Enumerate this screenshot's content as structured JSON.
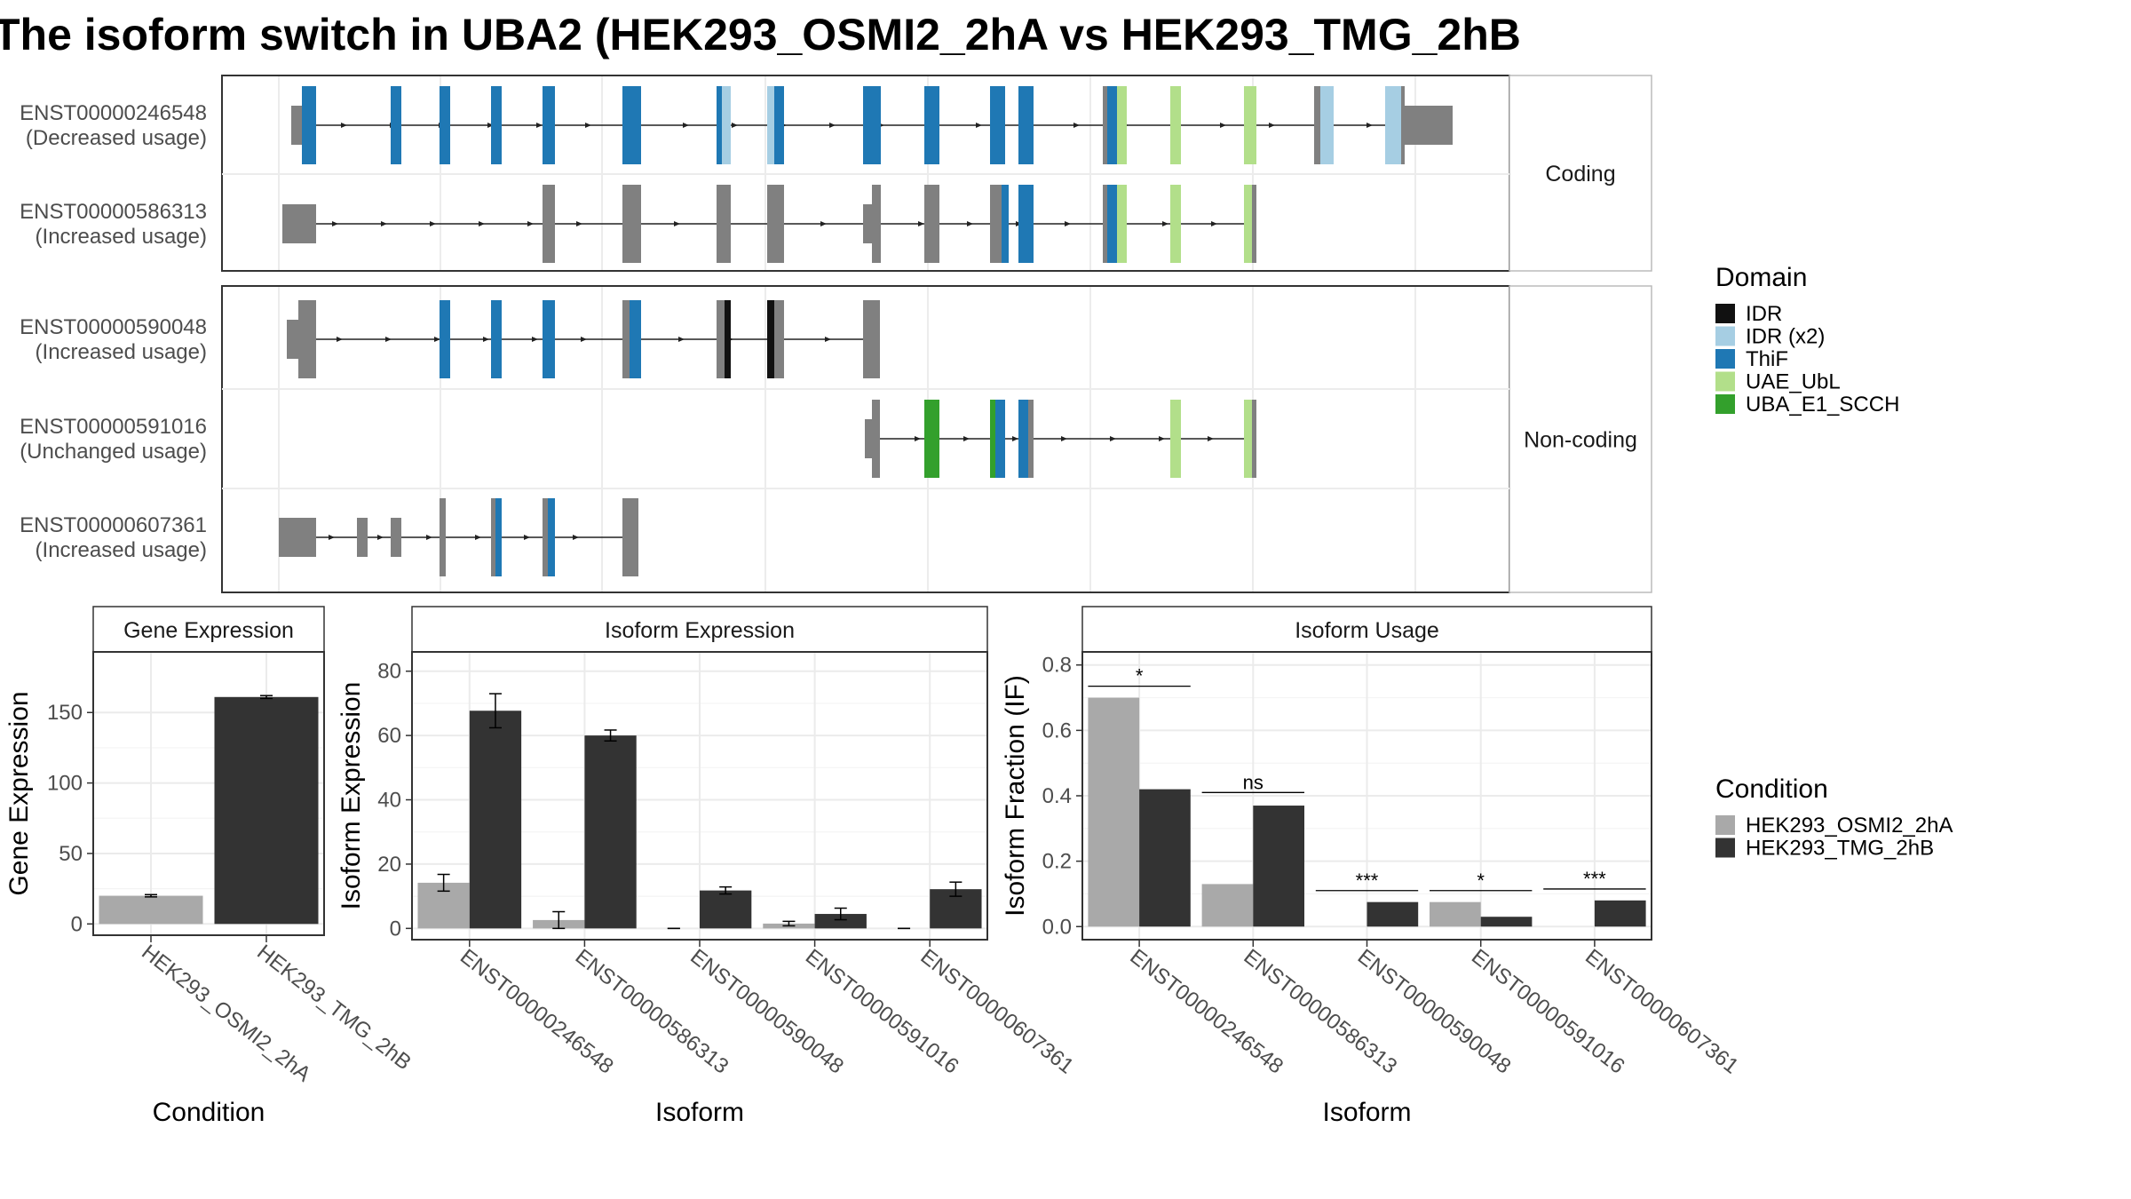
{
  "title": "The isoform switch in UBA2 (HEK293_OSMI2_2hA vs HEK293_TMG_2hB",
  "colors": {
    "IDR": "#111111",
    "IDR (x2)": "#a6cee3",
    "ThiF": "#1f78b4",
    "UAE_UbL": "#b2df8a",
    "UBA_E1_SCCH": "#33a02c",
    "exon": "#808080",
    "cond_a": "#a9a9a9",
    "cond_b": "#333333"
  },
  "structure": {
    "facets": [
      "Coding",
      "Non-coding"
    ],
    "transcripts": [
      {
        "id": "ENST00000246548",
        "usage": "(Decreased usage)",
        "facet": "Coding"
      },
      {
        "id": "ENST00000586313",
        "usage": "(Increased usage)",
        "facet": "Coding"
      },
      {
        "id": "ENST00000590048",
        "usage": "(Increased usage)",
        "facet": "Non-coding"
      },
      {
        "id": "ENST00000591016",
        "usage": "(Unchanged usage)",
        "facet": "Non-coding"
      },
      {
        "id": "ENST00000607361",
        "usage": "(Increased usage)",
        "facet": "Non-coding"
      }
    ]
  },
  "legend_domain": {
    "title": "Domain",
    "items": [
      "IDR",
      "IDR (x2)",
      "ThiF",
      "UAE_UbL",
      "UBA_E1_SCCH"
    ]
  },
  "legend_condition": {
    "title": "Condition",
    "items": [
      "HEK293_OSMI2_2hA",
      "HEK293_TMG_2hB"
    ]
  },
  "chart_data": [
    {
      "type": "bar",
      "panel": "Gene Expression",
      "categories": [
        "HEK293_OSMI2_2hA",
        "HEK293_TMG_2hB"
      ],
      "values": [
        20,
        161
      ],
      "errors": [
        0.8,
        1
      ],
      "xlabel": "Condition",
      "ylabel": "Gene Expression",
      "ylim": [
        -8,
        193
      ],
      "yticks": [
        0,
        50,
        100,
        150
      ],
      "grid": true
    },
    {
      "type": "bar",
      "panel": "Isoform Expression",
      "categories": [
        "ENST00000246548",
        "ENST00000586313",
        "ENST00000590048",
        "ENST00000591016",
        "ENST00000607361"
      ],
      "series": [
        {
          "name": "HEK293_OSMI2_2hA",
          "values": [
            14.2,
            2.6,
            0,
            1.5,
            0
          ],
          "errors": [
            2.6,
            2.6,
            0,
            0.7,
            0
          ]
        },
        {
          "name": "HEK293_TMG_2hB",
          "values": [
            67.7,
            60,
            11.8,
            4.5,
            12.2
          ],
          "errors": [
            5.3,
            1.7,
            1.1,
            1.8,
            2.2
          ]
        }
      ],
      "xlabel": "Isoform",
      "ylabel": "Isoform Expression",
      "ylim": [
        -3.5,
        86
      ],
      "yticks": [
        0,
        20,
        40,
        60,
        80
      ],
      "grid": true
    },
    {
      "type": "bar",
      "panel": "Isoform Usage",
      "categories": [
        "ENST00000246548",
        "ENST00000586313",
        "ENST00000590048",
        "ENST00000591016",
        "ENST00000607361"
      ],
      "series": [
        {
          "name": "HEK293_OSMI2_2hA",
          "values": [
            0.7,
            0.13,
            0,
            0.075,
            0
          ]
        },
        {
          "name": "HEK293_TMG_2hB",
          "values": [
            0.42,
            0.37,
            0.075,
            0.03,
            0.08
          ]
        }
      ],
      "significance": [
        {
          "label": "*",
          "y": 0.735
        },
        {
          "label": "ns",
          "y": 0.41
        },
        {
          "label": "***",
          "y": 0.11
        },
        {
          "label": "*",
          "y": 0.11
        },
        {
          "label": "***",
          "y": 0.115
        }
      ],
      "xlabel": "Isoform",
      "ylabel": "Isoform Fraction (IF)",
      "ylim": [
        -0.04,
        0.84
      ],
      "yticks": [
        0.0,
        0.2,
        0.4,
        0.6,
        0.8
      ],
      "ytick_labels": [
        "0.0",
        "0.2",
        "0.4",
        "0.6",
        "0.8"
      ],
      "grid": true
    }
  ]
}
